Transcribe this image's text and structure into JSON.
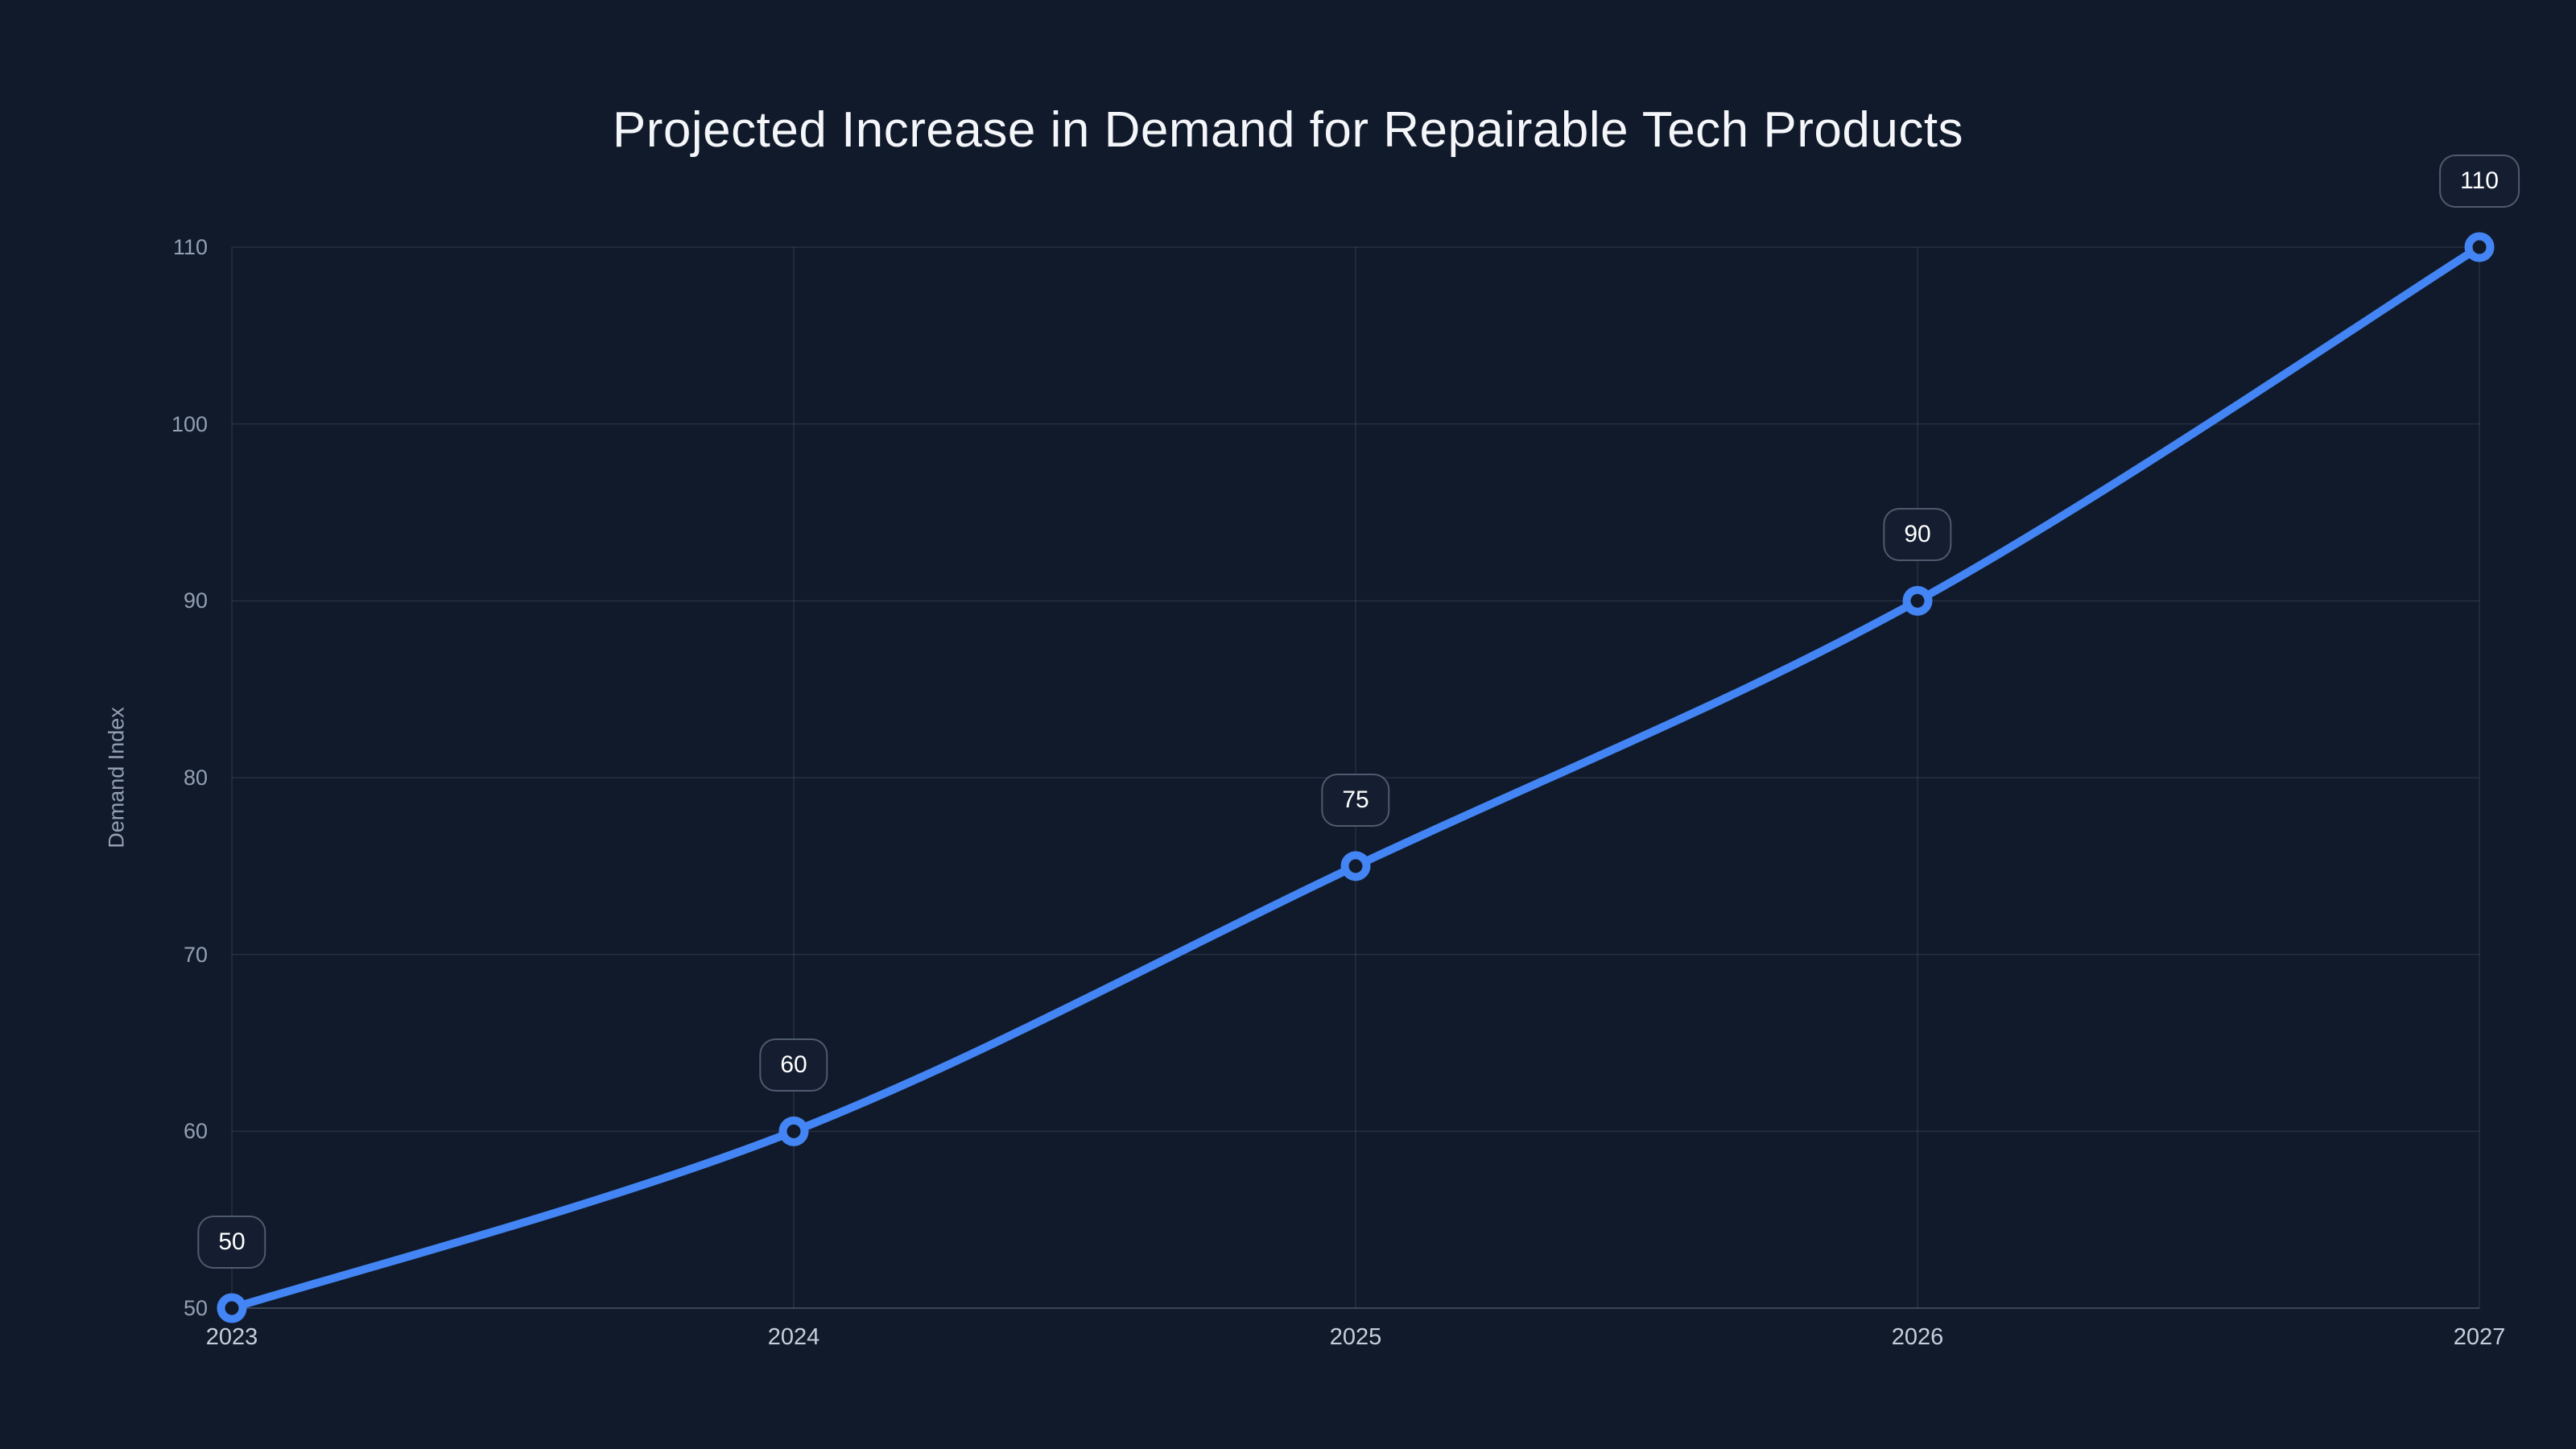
{
  "page": {
    "background_color": "#111A2B"
  },
  "chart_data": {
    "type": "line",
    "title": "Projected Increase in Demand for Repairable Tech Products",
    "xlabel": "",
    "ylabel": "Demand Index",
    "x": [
      "2023",
      "2024",
      "2025",
      "2026",
      "2027"
    ],
    "series": [
      {
        "name": "Demand Index",
        "values": [
          50,
          60,
          75,
          90,
          110
        ]
      }
    ],
    "point_labels": [
      "50",
      "60",
      "75",
      "90",
      "110"
    ],
    "ylim": [
      50,
      110
    ],
    "yticks": [
      50,
      60,
      70,
      80,
      90,
      100,
      110
    ],
    "grid": true,
    "legend_position": "none",
    "colors": {
      "line": "#4385F4",
      "marker_stroke": "#4385F4",
      "marker_fill": "#111A2B",
      "grid": "rgba(148,163,184,0.16)",
      "axis_line": "rgba(148,163,184,0.32)",
      "y_tick_text": "#93A0B4",
      "x_tick_text": "#C6CEDA",
      "title_text": "#F4F6FA",
      "badge_fill": "#151E31",
      "badge_border": "rgba(148,163,184,0.45)",
      "badge_text": "#FFFFFF"
    }
  }
}
